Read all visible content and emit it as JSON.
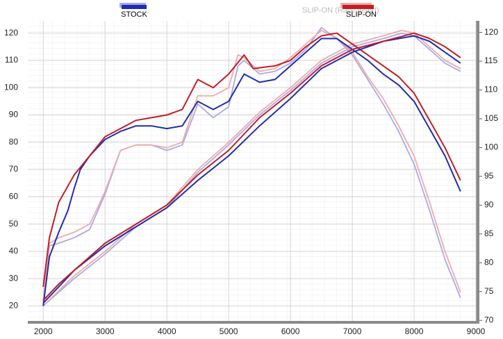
{
  "chart_data": {
    "type": "line",
    "legend": [
      {
        "label": "STOCK",
        "color": "#1f2cb0"
      },
      {
        "label": "SLIP-ON",
        "color": "#c21d24"
      }
    ],
    "ghost_label": "SLIP-ON (Race Insert)",
    "xlim": [
      1750,
      9000
    ],
    "xticks": [
      2000,
      3000,
      4000,
      5000,
      6000,
      7000,
      8000,
      9000
    ],
    "ylim": [
      14.5,
      124.5
    ],
    "yticks": [
      20,
      30,
      40,
      50,
      60,
      70,
      80,
      90,
      100,
      110,
      120
    ],
    "y2lim": [
      69.9,
      122
    ],
    "y2ticks": [
      70,
      75,
      80,
      85,
      90,
      95,
      100,
      105,
      110,
      115,
      120
    ],
    "grid": true,
    "series": [
      {
        "color": "#a9a9e6",
        "width": 1.8,
        "x": [
          2000,
          2100,
          2250,
          2500,
          2750,
          3000,
          3250,
          3500,
          3750,
          4000,
          4250,
          4500,
          4750,
          5000,
          5150,
          5250,
          5500,
          5750,
          6000,
          6250,
          6500,
          6750,
          7000,
          7250,
          7500,
          7750,
          8000,
          8250,
          8500,
          8750
        ],
        "values": [
          20,
          42,
          43,
          45,
          48,
          61,
          77,
          79,
          79,
          77,
          79,
          94,
          89,
          93,
          108,
          110,
          105,
          106,
          109,
          114,
          122,
          118,
          112,
          103,
          94,
          84,
          72,
          55,
          37,
          23
        ]
      },
      {
        "color": "#eeaaaa",
        "width": 1.8,
        "x": [
          2000,
          2100,
          2250,
          2500,
          2750,
          2900,
          3000,
          3250,
          3500,
          3750,
          4000,
          4250,
          4500,
          4750,
          5000,
          5150,
          5250,
          5500,
          5750,
          6000,
          6250,
          6500,
          6750,
          7000,
          7250,
          7500,
          7750,
          8000,
          8250,
          8500,
          8750
        ],
        "values": [
          22,
          43,
          45,
          47,
          50,
          57,
          62,
          77,
          79,
          79,
          78,
          80,
          97,
          97,
          100,
          112,
          111,
          106,
          107,
          111,
          116,
          121,
          118,
          113,
          104,
          96,
          86,
          75,
          58,
          40,
          25
        ]
      },
      {
        "color": "#a9a9e6",
        "width": 1.8,
        "x": [
          2000,
          2500,
          3000,
          3500,
          4000,
          4500,
          5000,
          5500,
          6000,
          6500,
          7000,
          7500,
          7800,
          8000,
          8250,
          8500,
          8750
        ],
        "values": [
          20,
          30,
          39,
          49,
          56,
          69,
          79,
          90,
          99,
          109,
          115,
          118,
          120,
          119,
          114,
          109,
          106
        ]
      },
      {
        "color": "#eeaaaa",
        "width": 1.8,
        "x": [
          2000,
          2500,
          3000,
          3500,
          4000,
          4500,
          5000,
          5500,
          6000,
          6500,
          7000,
          7500,
          7800,
          8000,
          8250,
          8500,
          8750
        ],
        "values": [
          20,
          31,
          40,
          50,
          57,
          70,
          80,
          91,
          100,
          110,
          116,
          119,
          121,
          120,
          115,
          110,
          107
        ]
      },
      {
        "color": "#1f2cb0",
        "width": 2,
        "x": [
          2000,
          2100,
          2250,
          2400,
          2500,
          2600,
          2750,
          3000,
          3250,
          3500,
          3750,
          4000,
          4250,
          4500,
          4750,
          5000,
          5250,
          5500,
          5750,
          6000,
          6250,
          6500,
          6750,
          7000,
          7250,
          7500,
          7750,
          8000,
          8250,
          8500,
          8750
        ],
        "values": [
          20,
          38,
          47,
          55,
          63,
          70,
          75,
          81,
          84,
          86,
          86,
          85,
          86,
          95,
          92,
          95,
          105,
          102,
          103,
          108,
          113,
          118,
          118,
          114,
          110,
          105,
          101,
          95,
          85,
          75,
          62
        ]
      },
      {
        "color": "#c21d24",
        "width": 2,
        "x": [
          2000,
          2100,
          2250,
          2500,
          2750,
          3000,
          3250,
          3500,
          3750,
          4000,
          4250,
          4500,
          4750,
          5000,
          5250,
          5400,
          5750,
          6000,
          6250,
          6500,
          6750,
          7000,
          7250,
          7500,
          7750,
          8000,
          8250,
          8500,
          8750
        ],
        "values": [
          27,
          45,
          58,
          68,
          75,
          82,
          85,
          88,
          89,
          90,
          92,
          103,
          100,
          105,
          112,
          107,
          108,
          110,
          115,
          119,
          120,
          116,
          112,
          108,
          104,
          98,
          88,
          78,
          66
        ]
      },
      {
        "color": "#1f2cb0",
        "width": 2,
        "x": [
          2000,
          2250,
          2500,
          3000,
          3500,
          4000,
          4500,
          5000,
          5500,
          6000,
          6500,
          7000,
          7500,
          8000,
          8250,
          8500,
          8750
        ],
        "values": [
          21,
          27,
          33,
          42,
          49,
          56,
          66,
          75,
          86,
          96,
          107,
          113,
          117,
          119,
          117,
          113,
          109
        ]
      },
      {
        "color": "#c21d24",
        "width": 2,
        "x": [
          2000,
          2250,
          2500,
          3000,
          3500,
          4000,
          4500,
          5000,
          5500,
          6000,
          6500,
          7000,
          7500,
          8000,
          8250,
          8500,
          8750
        ],
        "values": [
          22,
          28,
          33,
          43,
          50,
          57,
          68,
          77,
          89,
          98,
          108,
          114,
          117,
          120,
          118,
          115,
          111
        ]
      }
    ]
  }
}
